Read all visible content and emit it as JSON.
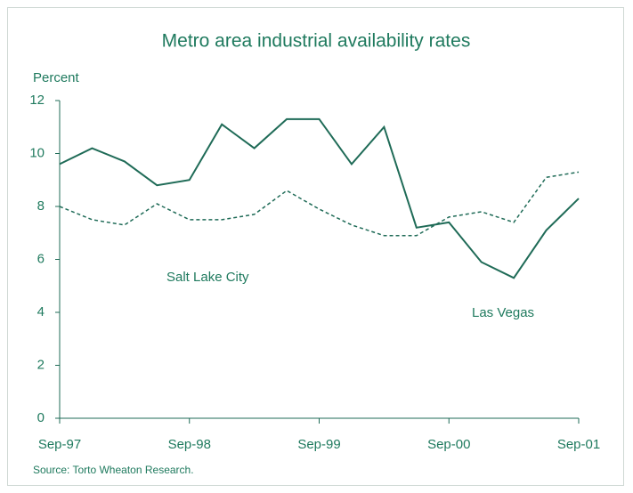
{
  "chart_data": {
    "type": "line",
    "title": "Metro area industrial availability rates",
    "y_label": "Percent",
    "source": "Source: Torto Wheaton Research.",
    "categories": [
      "Sep-97",
      null,
      null,
      null,
      "Sep-98",
      null,
      null,
      null,
      "Sep-99",
      null,
      null,
      null,
      "Sep-00",
      null,
      null,
      null,
      "Sep-01"
    ],
    "series": [
      {
        "name": "Las Vegas",
        "color": "#1f6b57",
        "dash": "solid",
        "values": [
          9.6,
          10.2,
          9.7,
          8.8,
          9.0,
          11.1,
          10.2,
          11.3,
          11.3,
          9.6,
          11.0,
          7.2,
          7.4,
          5.9,
          5.3,
          7.1,
          8.3
        ]
      },
      {
        "name": "Salt Lake City",
        "color": "#1f6b57",
        "dash": "dotted",
        "values": [
          8.0,
          7.5,
          7.3,
          8.1,
          7.5,
          7.5,
          7.7,
          8.6,
          7.9,
          7.3,
          6.9,
          6.9,
          7.6,
          7.8,
          7.4,
          9.1,
          9.3
        ]
      }
    ],
    "ylim": [
      0,
      12
    ],
    "yticks": [
      0,
      2,
      4,
      6,
      8,
      10,
      12
    ],
    "grid": false
  }
}
